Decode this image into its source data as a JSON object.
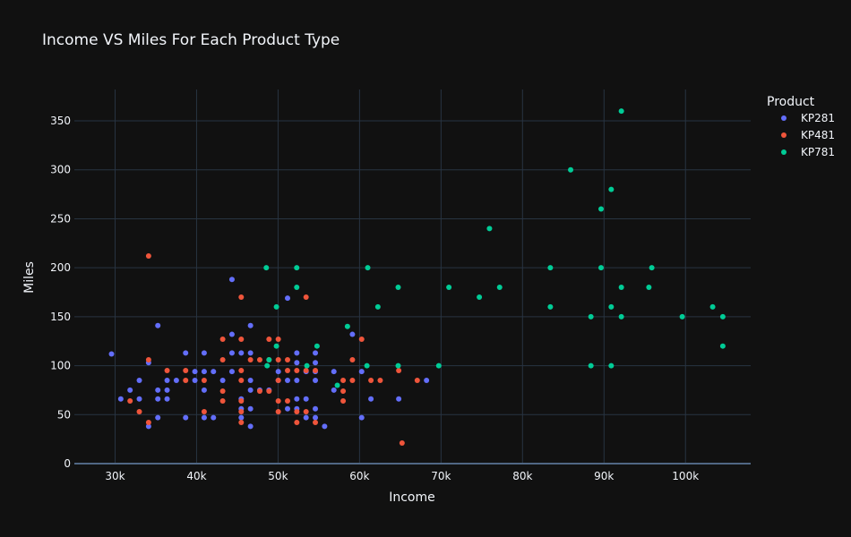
{
  "chart_data": {
    "type": "scatter",
    "title": "Income VS Miles For Each Product Type",
    "xlabel": "Income",
    "ylabel": "Miles",
    "xlim": [
      25000,
      108000
    ],
    "ylim": [
      0,
      382
    ],
    "x_ticks": [
      30000,
      40000,
      50000,
      60000,
      70000,
      80000,
      90000,
      100000
    ],
    "x_tick_labels": [
      "30k",
      "40k",
      "50k",
      "60k",
      "70k",
      "80k",
      "90k",
      "100k"
    ],
    "y_ticks": [
      0,
      50,
      100,
      150,
      200,
      250,
      300,
      350
    ],
    "y_tick_labels": [
      "0",
      "50",
      "100",
      "150",
      "200",
      "250",
      "300",
      "350"
    ],
    "grid": true,
    "legend": {
      "title": "Product",
      "placement": "top-right"
    },
    "series": [
      {
        "name": "KP281",
        "color": "#636efa",
        "points": [
          [
            29562,
            112
          ],
          [
            30699,
            66
          ],
          [
            31836,
            75
          ],
          [
            32973,
            66
          ],
          [
            32973,
            85
          ],
          [
            34110,
            38
          ],
          [
            34110,
            103
          ],
          [
            35247,
            47
          ],
          [
            35247,
            66
          ],
          [
            35247,
            75
          ],
          [
            35247,
            141
          ],
          [
            36384,
            66
          ],
          [
            36384,
            75
          ],
          [
            36384,
            85
          ],
          [
            37521,
            85
          ],
          [
            38658,
            47
          ],
          [
            38658,
            113
          ],
          [
            39795,
            85
          ],
          [
            39795,
            94
          ],
          [
            40932,
            47
          ],
          [
            40932,
            75
          ],
          [
            40932,
            94
          ],
          [
            40932,
            113
          ],
          [
            42069,
            47
          ],
          [
            42069,
            94
          ],
          [
            43206,
            85
          ],
          [
            44343,
            94
          ],
          [
            44343,
            113
          ],
          [
            44343,
            132
          ],
          [
            44343,
            188
          ],
          [
            45480,
            47
          ],
          [
            45480,
            56
          ],
          [
            45480,
            66
          ],
          [
            45480,
            113
          ],
          [
            46617,
            38
          ],
          [
            46617,
            56
          ],
          [
            46617,
            75
          ],
          [
            46617,
            85
          ],
          [
            46617,
            113
          ],
          [
            46617,
            141
          ],
          [
            47754,
            75
          ],
          [
            48891,
            75
          ],
          [
            50028,
            85
          ],
          [
            50028,
            94
          ],
          [
            51165,
            56
          ],
          [
            51165,
            85
          ],
          [
            51165,
            169
          ],
          [
            52302,
            56
          ],
          [
            52302,
            66
          ],
          [
            52302,
            85
          ],
          [
            52302,
            103
          ],
          [
            52302,
            113
          ],
          [
            53439,
            47
          ],
          [
            53439,
            66
          ],
          [
            53439,
            94
          ],
          [
            54576,
            47
          ],
          [
            54576,
            56
          ],
          [
            54576,
            85
          ],
          [
            54576,
            94
          ],
          [
            54576,
            103
          ],
          [
            54576,
            113
          ],
          [
            55713,
            38
          ],
          [
            56850,
            75
          ],
          [
            56850,
            94
          ],
          [
            59124,
            132
          ],
          [
            60261,
            47
          ],
          [
            60261,
            94
          ],
          [
            61398,
            66
          ],
          [
            64809,
            66
          ],
          [
            68220,
            85
          ]
        ]
      },
      {
        "name": "KP481",
        "color": "#ef553b",
        "points": [
          [
            31836,
            64
          ],
          [
            32973,
            53
          ],
          [
            34110,
            42
          ],
          [
            34110,
            106
          ],
          [
            34110,
            212
          ],
          [
            36384,
            95
          ],
          [
            38658,
            85
          ],
          [
            38658,
            95
          ],
          [
            40932,
            53
          ],
          [
            40932,
            85
          ],
          [
            43206,
            64
          ],
          [
            43206,
            74
          ],
          [
            43206,
            106
          ],
          [
            43206,
            127
          ],
          [
            45480,
            42
          ],
          [
            45480,
            53
          ],
          [
            45480,
            64
          ],
          [
            45480,
            85
          ],
          [
            45480,
            95
          ],
          [
            45480,
            127
          ],
          [
            45480,
            170
          ],
          [
            46617,
            106
          ],
          [
            47754,
            74
          ],
          [
            47754,
            106
          ],
          [
            48891,
            74
          ],
          [
            48891,
            106
          ],
          [
            48891,
            127
          ],
          [
            50028,
            53
          ],
          [
            50028,
            64
          ],
          [
            50028,
            85
          ],
          [
            50028,
            106
          ],
          [
            50028,
            127
          ],
          [
            51165,
            64
          ],
          [
            51165,
            95
          ],
          [
            51165,
            106
          ],
          [
            52302,
            42
          ],
          [
            52302,
            53
          ],
          [
            52302,
            95
          ],
          [
            53439,
            53
          ],
          [
            53439,
            95
          ],
          [
            53439,
            170
          ],
          [
            54576,
            42
          ],
          [
            54576,
            95
          ],
          [
            57987,
            74
          ],
          [
            57987,
            85
          ],
          [
            57987,
            64
          ],
          [
            59124,
            85
          ],
          [
            59124,
            106
          ],
          [
            60261,
            127
          ],
          [
            61398,
            85
          ],
          [
            62535,
            85
          ],
          [
            64809,
            95
          ],
          [
            65220,
            21
          ],
          [
            67083,
            85
          ]
        ]
      },
      {
        "name": "KP781",
        "color": "#00cc96",
        "points": [
          [
            48556,
            200
          ],
          [
            48658,
            100
          ],
          [
            48891,
            106
          ],
          [
            49801,
            160
          ],
          [
            49801,
            120
          ],
          [
            52290,
            200
          ],
          [
            52291,
            180
          ],
          [
            53536,
            100
          ],
          [
            54781,
            120
          ],
          [
            57271,
            80
          ],
          [
            58516,
            140
          ],
          [
            60906,
            100
          ],
          [
            61006,
            200
          ],
          [
            62251,
            160
          ],
          [
            64741,
            180
          ],
          [
            64741,
            100
          ],
          [
            69721,
            100
          ],
          [
            70966,
            180
          ],
          [
            74701,
            170
          ],
          [
            75946,
            240
          ],
          [
            77191,
            180
          ],
          [
            83416,
            200
          ],
          [
            83416,
            160
          ],
          [
            85906,
            300
          ],
          [
            88396,
            150
          ],
          [
            88396,
            100
          ],
          [
            89641,
            260
          ],
          [
            89641,
            200
          ],
          [
            90886,
            280
          ],
          [
            90886,
            160
          ],
          [
            90886,
            100
          ],
          [
            92131,
            360
          ],
          [
            92131,
            180
          ],
          [
            92131,
            150
          ],
          [
            95508,
            180
          ],
          [
            95866,
            200
          ],
          [
            99601,
            150
          ],
          [
            103336,
            160
          ],
          [
            104581,
            150
          ],
          [
            104581,
            120
          ]
        ]
      }
    ]
  }
}
